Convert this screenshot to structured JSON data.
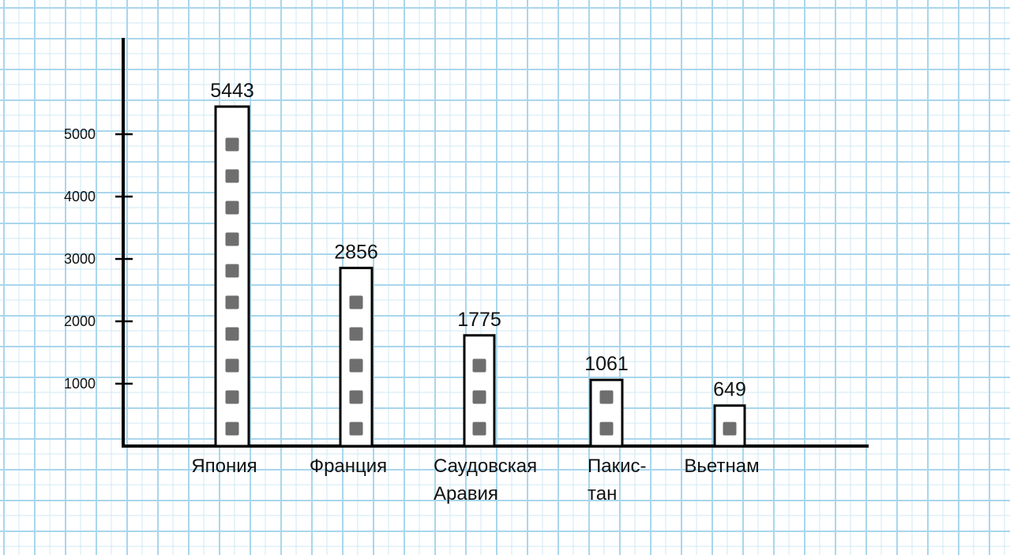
{
  "chart_data": {
    "type": "bar",
    "categories": [
      "Япония",
      "Франция",
      "Саудовская Аравия",
      "Пакис-тан",
      "Вьетнам"
    ],
    "category_lines": [
      [
        "Япония"
      ],
      [
        "Франция"
      ],
      [
        "Саудовская",
        "Аравия"
      ],
      [
        "Пакис-",
        "тан"
      ],
      [
        "Вьетнам"
      ]
    ],
    "values": [
      5443,
      2856,
      1775,
      1061,
      649
    ],
    "value_labels": [
      "5443",
      "2856",
      "1775",
      "1061",
      "649"
    ],
    "y_ticks": [
      1000,
      2000,
      3000,
      4000,
      5000
    ],
    "y_tick_labels": [
      "1000",
      "2000",
      "3000",
      "4000",
      "5000"
    ],
    "ylim": [
      0,
      6500
    ],
    "title": "",
    "xlabel": "",
    "ylabel": "",
    "grid": false,
    "colors": {
      "axis": "#000000",
      "bar_fill": "#ffffff",
      "bar_stroke": "#000000",
      "bar_pattern": "#6e6e6e",
      "paper_major_grid": "#a9d6ec",
      "paper_minor_grid": "#cfe8f5"
    }
  }
}
